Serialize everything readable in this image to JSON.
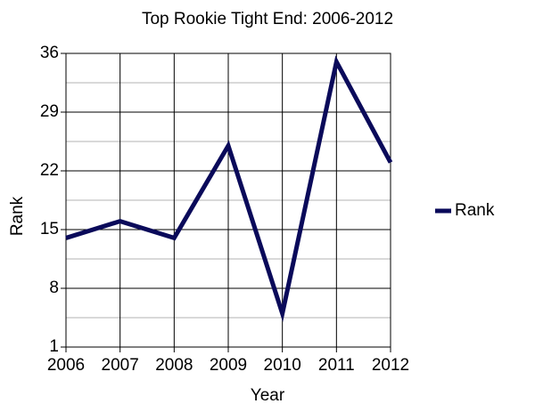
{
  "chart_data": {
    "type": "line",
    "title": "Top Rookie Tight End: 2006-2012",
    "x_label": "Year",
    "y_label": "Rank",
    "x": [
      2006,
      2007,
      2008,
      2009,
      2010,
      2011,
      2012
    ],
    "series": [
      {
        "name": "Rank",
        "color": "#0a0a5a",
        "values": [
          14,
          16,
          14,
          25,
          5,
          35,
          23
        ]
      }
    ],
    "xlim": [
      2006,
      2012
    ],
    "xticks": [
      2006,
      2007,
      2008,
      2009,
      2010,
      2011,
      2012
    ],
    "ylim": [
      1,
      36
    ],
    "yticks": [
      1,
      8,
      15,
      22,
      29,
      36
    ],
    "grid": true,
    "minor_grid": true,
    "legend": "right"
  }
}
